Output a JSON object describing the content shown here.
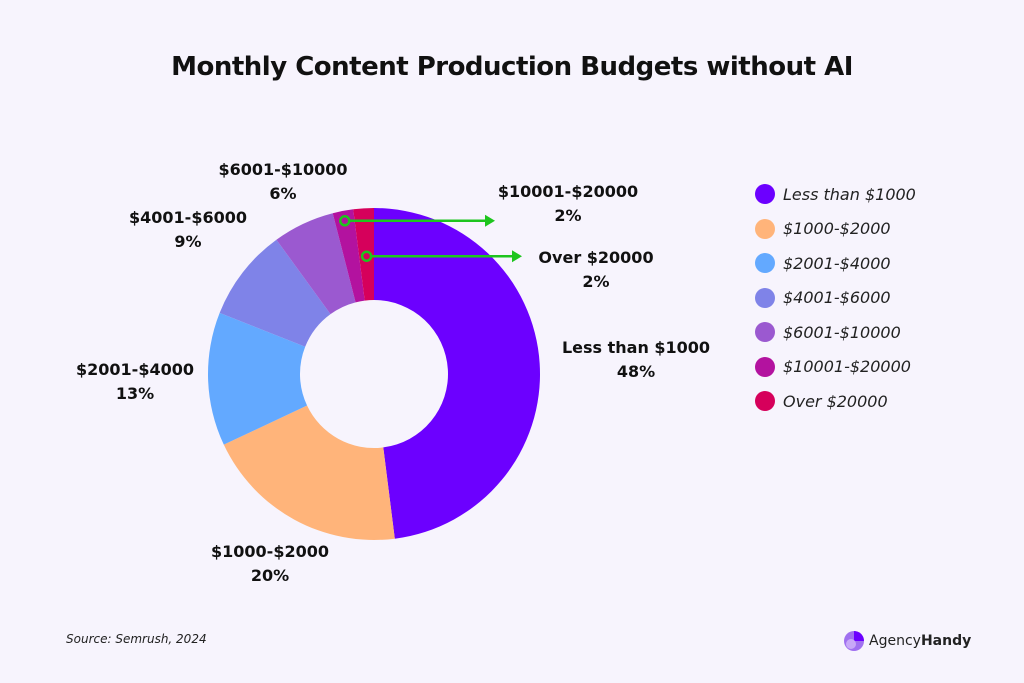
{
  "chart_data": {
    "type": "pie",
    "title": "Monthly Content Production Budgets without AI",
    "categories": [
      "Less than $1000",
      "$1000-$2000",
      "$2001-$4000",
      "$4001-$6000",
      "$6001-$10000",
      "$10001-$20000",
      "Over $20000"
    ],
    "values": [
      48,
      20,
      13,
      9,
      6,
      2,
      2
    ],
    "value_labels": [
      "48%",
      "20%",
      "13%",
      "9%",
      "6%",
      "2%",
      "2%"
    ],
    "colors": [
      "#6c00ff",
      "#ffb47a",
      "#63a9ff",
      "#7f83e8",
      "#9b59d0",
      "#b3129f",
      "#d6005b"
    ],
    "donut": true,
    "legend_position": "right",
    "annotation_arrow_color": "#1ec51e"
  },
  "source": "Source: Semrush, 2024",
  "brand": {
    "name_regular": "Agency",
    "name_bold": "Handy"
  }
}
